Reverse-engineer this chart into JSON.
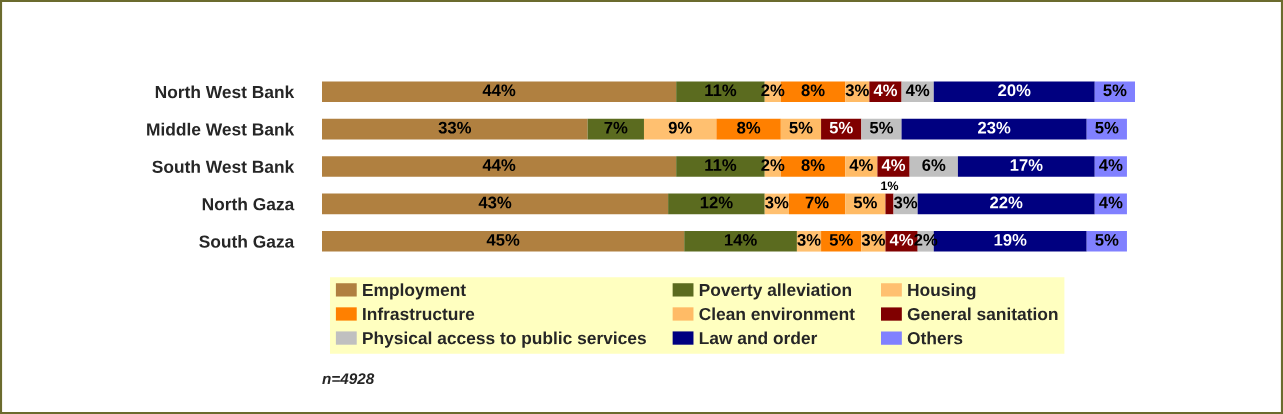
{
  "chart_data": {
    "type": "bar",
    "orientation": "horizontal",
    "stacked": true,
    "legend": "bottom",
    "grid": false,
    "categories": [
      "North West Bank",
      "Middle West Bank",
      "South West Bank",
      "North Gaza",
      "South Gaza"
    ],
    "series": [
      {
        "name": "Employment",
        "color": "#b08040",
        "values": [
          44,
          33,
          44,
          43,
          45
        ],
        "value_labels": [
          "44%",
          "33%",
          "44%",
          "43%",
          "45%"
        ]
      },
      {
        "name": "Poverty alleviation",
        "color": "#5b6b1f",
        "values": [
          11,
          7,
          11,
          12,
          14
        ],
        "value_labels": [
          "11%",
          "7%",
          "11%",
          "12%",
          "14%"
        ]
      },
      {
        "name": "Housing",
        "color": "#ffc070",
        "values": [
          2,
          9,
          2,
          3,
          3
        ],
        "value_labels": [
          "2%",
          "9%",
          "2%",
          "3%",
          "3%"
        ]
      },
      {
        "name": "Infrastructure",
        "color": "#ff8000",
        "values": [
          8,
          8,
          8,
          7,
          5
        ],
        "value_labels": [
          "8%",
          "8%",
          "8%",
          "7%",
          "5%"
        ]
      },
      {
        "name": "Clean environment",
        "color": "#ffbb66",
        "values": [
          3,
          5,
          4,
          5,
          3
        ],
        "value_labels": [
          "3%",
          "5%",
          "4%",
          "5%",
          "3%"
        ]
      },
      {
        "name": "General sanitation",
        "color": "#800000",
        "values": [
          4,
          5,
          4,
          1,
          4
        ],
        "value_labels": [
          "4%",
          "5%",
          "4%",
          "1%",
          "4%"
        ]
      },
      {
        "name": "Physical access to public services",
        "color": "#c0c0c0",
        "values": [
          4,
          5,
          6,
          3,
          2
        ],
        "value_labels": [
          "4%",
          "5%",
          "6%",
          "3%",
          "2%"
        ]
      },
      {
        "name": "Law and order",
        "color": "#000080",
        "values": [
          20,
          23,
          17,
          22,
          19
        ],
        "value_labels": [
          "20%",
          "23%",
          "17%",
          "22%",
          "19%"
        ]
      },
      {
        "name": "Others",
        "color": "#8080ff",
        "values": [
          5,
          5,
          4,
          4,
          5
        ],
        "value_labels": [
          "5%",
          "5%",
          "4%",
          "4%",
          "5%"
        ]
      }
    ],
    "annotations": [
      "n=4928"
    ]
  }
}
